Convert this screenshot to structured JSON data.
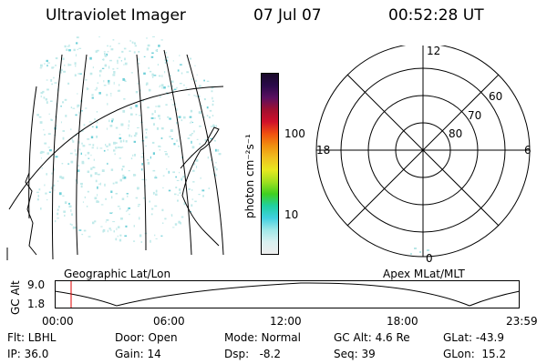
{
  "header": {
    "title": "Ultraviolet Imager",
    "date": "07 Jul 07",
    "time": "00:52:28 UT"
  },
  "colorbar": {
    "unit_label": "photon cm⁻²s⁻¹",
    "ticks": [
      "100",
      "10"
    ],
    "colors": [
      "#1a0a2a",
      "#2a0a4a",
      "#5a1060",
      "#a01030",
      "#d0102a",
      "#f05010",
      "#f09010",
      "#f0c020",
      "#e8e820",
      "#a0e020",
      "#40d020",
      "#20d0a0",
      "#40d0e0",
      "#a0e8e8",
      "#d8f0f0",
      "#eeeeee"
    ]
  },
  "left_panel": {
    "caption": "Geographic Lat/Lon"
  },
  "polar_plot": {
    "caption": "Apex MLat/MLT",
    "mlt_labels": {
      "top": "12",
      "bottom": "0",
      "left": "18",
      "right": "6"
    },
    "lat_labels": [
      "60",
      "70",
      "80"
    ]
  },
  "altitude_strip": {
    "ylabel": "GC Alt",
    "ytick_top": "9.0",
    "ytick_bottom": "1.8",
    "xticks": [
      "00:00",
      "06:00",
      "12:00",
      "18:00",
      "23:59"
    ],
    "marker_color": "#e00000"
  },
  "info": {
    "flt": "Flt: LBHL",
    "ip": "IP: 36.0",
    "door": "Door: Open",
    "gain": "Gain: 14",
    "mode": "Mode: Normal",
    "dsp": "Dsp:   -8.2",
    "gcalt": "GC Alt: 4.6 Re",
    "seq": "Seq: 39",
    "glat": "GLat: -43.9",
    "glon": "GLon:  15.2"
  }
}
